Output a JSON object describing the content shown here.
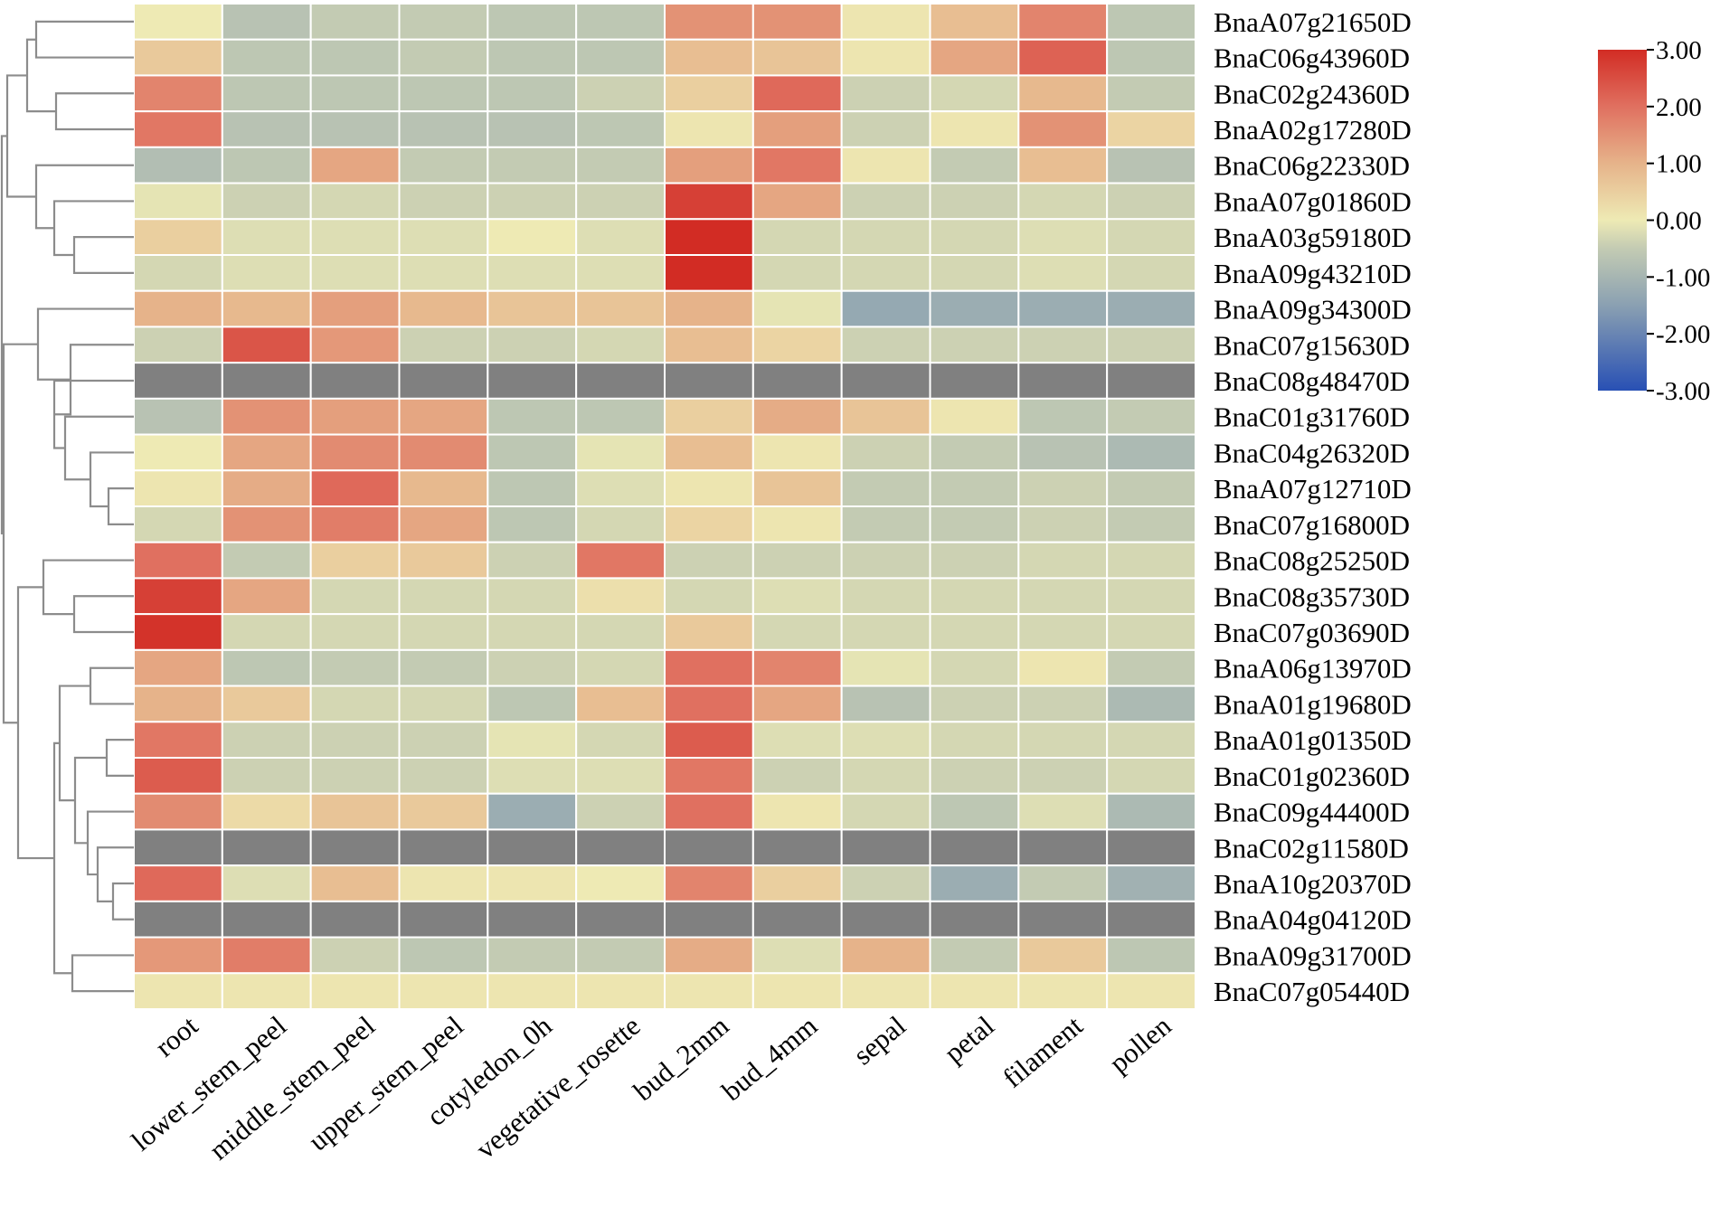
{
  "chart_data": {
    "type": "heatmap",
    "title": "",
    "columns": [
      "root",
      "lower_stem_peel",
      "middle_stem_peel",
      "upper_stem_peel",
      "cotyledon_0h",
      "vegetative_rosette",
      "bud_2mm",
      "bud_4mm",
      "sepal",
      "petal",
      "filament",
      "pollen"
    ],
    "rows": [
      "BnaA07g21650D",
      "BnaC06g43960D",
      "BnaC02g24360D",
      "BnaA02g17280D",
      "BnaC06g22330D",
      "BnaA07g01860D",
      "BnaA03g59180D",
      "BnaA09g43210D",
      "BnaA09g34300D",
      "BnaC07g15630D",
      "BnaC08g48470D",
      "BnaC01g31760D",
      "BnaC04g26320D",
      "BnaA07g12710D",
      "BnaC07g16800D",
      "BnaC08g25250D",
      "BnaC08g35730D",
      "BnaC07g03690D",
      "BnaA06g13970D",
      "BnaA01g19680D",
      "BnaA01g01350D",
      "BnaC01g02360D",
      "BnaC09g44400D",
      "BnaC02g11580D",
      "BnaA10g20370D",
      "BnaA04g04120D",
      "BnaA09g31700D",
      "BnaC07g05440D"
    ],
    "values": [
      [
        0.0,
        -0.7,
        -0.5,
        -0.5,
        -0.6,
        -0.6,
        1.5,
        1.5,
        0.1,
        0.8,
        1.7,
        -0.6
      ],
      [
        0.6,
        -0.6,
        -0.6,
        -0.5,
        -0.6,
        -0.6,
        0.8,
        0.7,
        0.1,
        1.2,
        2.2,
        -0.6
      ],
      [
        1.7,
        -0.6,
        -0.6,
        -0.6,
        -0.6,
        -0.4,
        0.5,
        2.1,
        -0.4,
        -0.3,
        0.9,
        -0.5
      ],
      [
        1.9,
        -0.7,
        -0.7,
        -0.7,
        -0.7,
        -0.6,
        0.1,
        1.3,
        -0.4,
        0.1,
        1.5,
        0.4
      ],
      [
        -0.8,
        -0.6,
        1.2,
        -0.5,
        -0.5,
        -0.5,
        1.3,
        1.9,
        0.1,
        -0.5,
        0.8,
        -0.7
      ],
      [
        -0.1,
        -0.4,
        -0.3,
        -0.4,
        -0.4,
        -0.4,
        2.7,
        1.2,
        -0.4,
        -0.4,
        -0.3,
        -0.4
      ],
      [
        0.5,
        -0.2,
        -0.2,
        -0.2,
        0.0,
        -0.2,
        3.0,
        -0.3,
        -0.3,
        -0.3,
        -0.2,
        -0.3
      ],
      [
        -0.3,
        -0.2,
        -0.2,
        -0.2,
        -0.2,
        -0.2,
        3.0,
        -0.3,
        -0.3,
        -0.3,
        -0.2,
        -0.3
      ],
      [
        1.0,
        0.9,
        1.3,
        0.9,
        0.7,
        0.7,
        1.0,
        -0.1,
        -1.3,
        -1.2,
        -1.2,
        -1.2
      ],
      [
        -0.4,
        2.4,
        1.4,
        -0.4,
        -0.4,
        -0.3,
        0.8,
        0.4,
        -0.4,
        -0.4,
        -0.4,
        -0.4
      ],
      [
        null,
        null,
        null,
        null,
        null,
        null,
        null,
        null,
        null,
        null,
        null,
        null
      ],
      [
        -0.7,
        1.5,
        1.3,
        1.2,
        -0.6,
        -0.6,
        0.5,
        1.1,
        0.7,
        0.1,
        -0.6,
        -0.5
      ],
      [
        0.0,
        1.2,
        1.6,
        1.6,
        -0.6,
        -0.1,
        0.8,
        0.1,
        -0.4,
        -0.5,
        -0.7,
        -0.9
      ],
      [
        0.1,
        1.1,
        2.1,
        0.9,
        -0.6,
        -0.2,
        0.1,
        0.7,
        -0.5,
        -0.5,
        -0.4,
        -0.5
      ],
      [
        -0.3,
        1.5,
        1.8,
        1.2,
        -0.6,
        -0.3,
        0.4,
        0.1,
        -0.5,
        -0.5,
        -0.4,
        -0.5
      ],
      [
        2.0,
        -0.5,
        0.5,
        0.6,
        -0.4,
        1.9,
        -0.4,
        -0.4,
        -0.4,
        -0.4,
        -0.3,
        -0.3
      ],
      [
        2.7,
        1.2,
        -0.3,
        -0.3,
        -0.3,
        0.2,
        -0.3,
        -0.2,
        -0.3,
        -0.3,
        -0.3,
        -0.3
      ],
      [
        2.9,
        -0.3,
        -0.3,
        -0.3,
        -0.3,
        -0.3,
        0.6,
        -0.3,
        -0.3,
        -0.3,
        -0.3,
        -0.3
      ],
      [
        1.2,
        -0.6,
        -0.5,
        -0.5,
        -0.4,
        -0.3,
        2.0,
        1.7,
        -0.1,
        -0.3,
        0.1,
        -0.5
      ],
      [
        1.0,
        0.6,
        -0.3,
        -0.3,
        -0.6,
        0.8,
        2.0,
        1.2,
        -0.7,
        -0.4,
        -0.4,
        -0.9
      ],
      [
        1.9,
        -0.4,
        -0.4,
        -0.4,
        -0.1,
        -0.3,
        2.3,
        -0.2,
        -0.2,
        -0.3,
        -0.3,
        -0.3
      ],
      [
        2.3,
        -0.4,
        -0.4,
        -0.4,
        -0.2,
        -0.2,
        1.9,
        -0.4,
        -0.3,
        -0.4,
        -0.4,
        -0.3
      ],
      [
        1.6,
        0.3,
        0.7,
        0.6,
        -1.2,
        -0.4,
        2.0,
        0.1,
        -0.3,
        -0.6,
        -0.2,
        -0.9
      ],
      [
        null,
        null,
        null,
        null,
        null,
        null,
        null,
        null,
        null,
        null,
        null,
        null
      ],
      [
        2.1,
        -0.2,
        0.8,
        0.1,
        0.1,
        0.0,
        1.7,
        0.5,
        -0.4,
        -1.2,
        -0.5,
        -1.1
      ],
      [
        null,
        null,
        null,
        null,
        null,
        null,
        null,
        null,
        null,
        null,
        null,
        null
      ],
      [
        1.4,
        1.8,
        -0.4,
        -0.6,
        -0.5,
        -0.5,
        1.1,
        -0.2,
        1.0,
        -0.5,
        0.6,
        -0.6
      ],
      [
        0.1,
        0.1,
        0.1,
        0.1,
        0.1,
        0.1,
        0.1,
        0.1,
        0.1,
        0.1,
        0.1,
        0.1
      ]
    ],
    "missing_color": "#808080",
    "colorbar": {
      "range": [
        -3,
        3
      ],
      "ticks": [
        "3.00",
        "2.00",
        "1.00",
        "0.00",
        "-1.00",
        "-2.00",
        "-3.00"
      ],
      "stops": [
        {
          "value": -3.0,
          "color": "#2850b4"
        },
        {
          "value": -1.5,
          "color": "#8aa0b2"
        },
        {
          "value": -0.5,
          "color": "#c3cbb3"
        },
        {
          "value": 0.0,
          "color": "#eeeab4"
        },
        {
          "value": 1.0,
          "color": "#e6b38a"
        },
        {
          "value": 2.0,
          "color": "#e07060"
        },
        {
          "value": 3.0,
          "color": "#d22c24"
        }
      ]
    }
  }
}
